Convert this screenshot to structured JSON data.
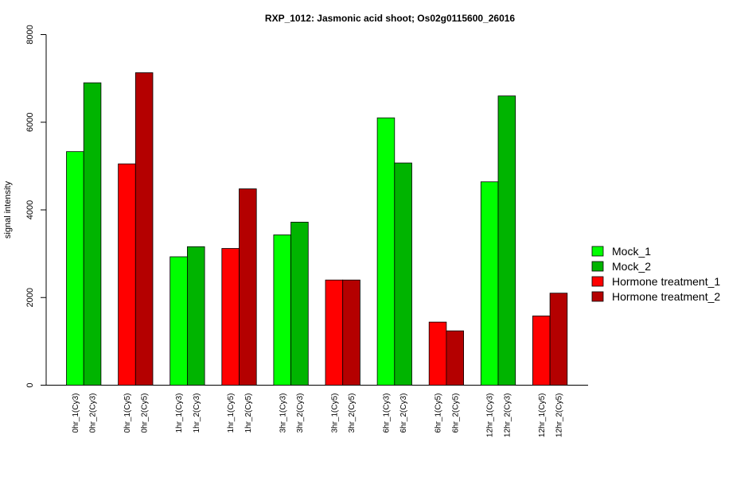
{
  "chart_data": {
    "type": "bar",
    "title": "RXP_1012: Jasmonic acid shoot; Os02g0115600_26016",
    "xlabel": "",
    "ylabel": "signal intensity",
    "ylim": [
      0,
      8000
    ],
    "yticks": [
      0,
      2000,
      4000,
      6000,
      8000
    ],
    "grid": false,
    "legend_position": "right",
    "groups": [
      {
        "labels": [
          "0hr_1(Cy3)",
          "0hr_2(Cy3)"
        ],
        "values": [
          5330,
          6900
        ],
        "colors": [
          "#00ff00",
          "#00b400"
        ]
      },
      {
        "labels": [
          "0hr_1(Cy5)",
          "0hr_2(Cy5)"
        ],
        "values": [
          5050,
          7130
        ],
        "colors": [
          "#ff0000",
          "#b40000"
        ]
      },
      {
        "labels": [
          "1hr_1(Cy3)",
          "1hr_2(Cy3)"
        ],
        "values": [
          2930,
          3160
        ],
        "colors": [
          "#00ff00",
          "#00b400"
        ]
      },
      {
        "labels": [
          "1hr_1(Cy5)",
          "1hr_2(Cy5)"
        ],
        "values": [
          3120,
          4480
        ],
        "colors": [
          "#ff0000",
          "#b40000"
        ]
      },
      {
        "labels": [
          "3hr_1(Cy3)",
          "3hr_2(Cy3)"
        ],
        "values": [
          3430,
          3720
        ],
        "colors": [
          "#00ff00",
          "#00b400"
        ]
      },
      {
        "labels": [
          "3hr_1(Cy5)",
          "3hr_2(Cy5)"
        ],
        "values": [
          2400,
          2400
        ],
        "colors": [
          "#ff0000",
          "#b40000"
        ]
      },
      {
        "labels": [
          "6hr_1(Cy3)",
          "6hr_2(Cy3)"
        ],
        "values": [
          6100,
          5070
        ],
        "colors": [
          "#00ff00",
          "#00b400"
        ]
      },
      {
        "labels": [
          "6hr_1(Cy5)",
          "6hr_2(Cy5)"
        ],
        "values": [
          1440,
          1240
        ],
        "colors": [
          "#ff0000",
          "#b40000"
        ]
      },
      {
        "labels": [
          "12hr_1(Cy3)",
          "12hr_2(Cy3)"
        ],
        "values": [
          4640,
          6600
        ],
        "colors": [
          "#00ff00",
          "#00b400"
        ]
      },
      {
        "labels": [
          "12hr_1(Cy5)",
          "12hr_2(Cy5)"
        ],
        "values": [
          1580,
          2100
        ],
        "colors": [
          "#ff0000",
          "#b40000"
        ]
      }
    ],
    "legend": [
      {
        "name": "Mock_1",
        "color": "#00ff00"
      },
      {
        "name": "Mock_2",
        "color": "#00b400"
      },
      {
        "name": "Hormone treatment_1",
        "color": "#ff0000"
      },
      {
        "name": "Hormone treatment_2",
        "color": "#b40000"
      }
    ]
  }
}
